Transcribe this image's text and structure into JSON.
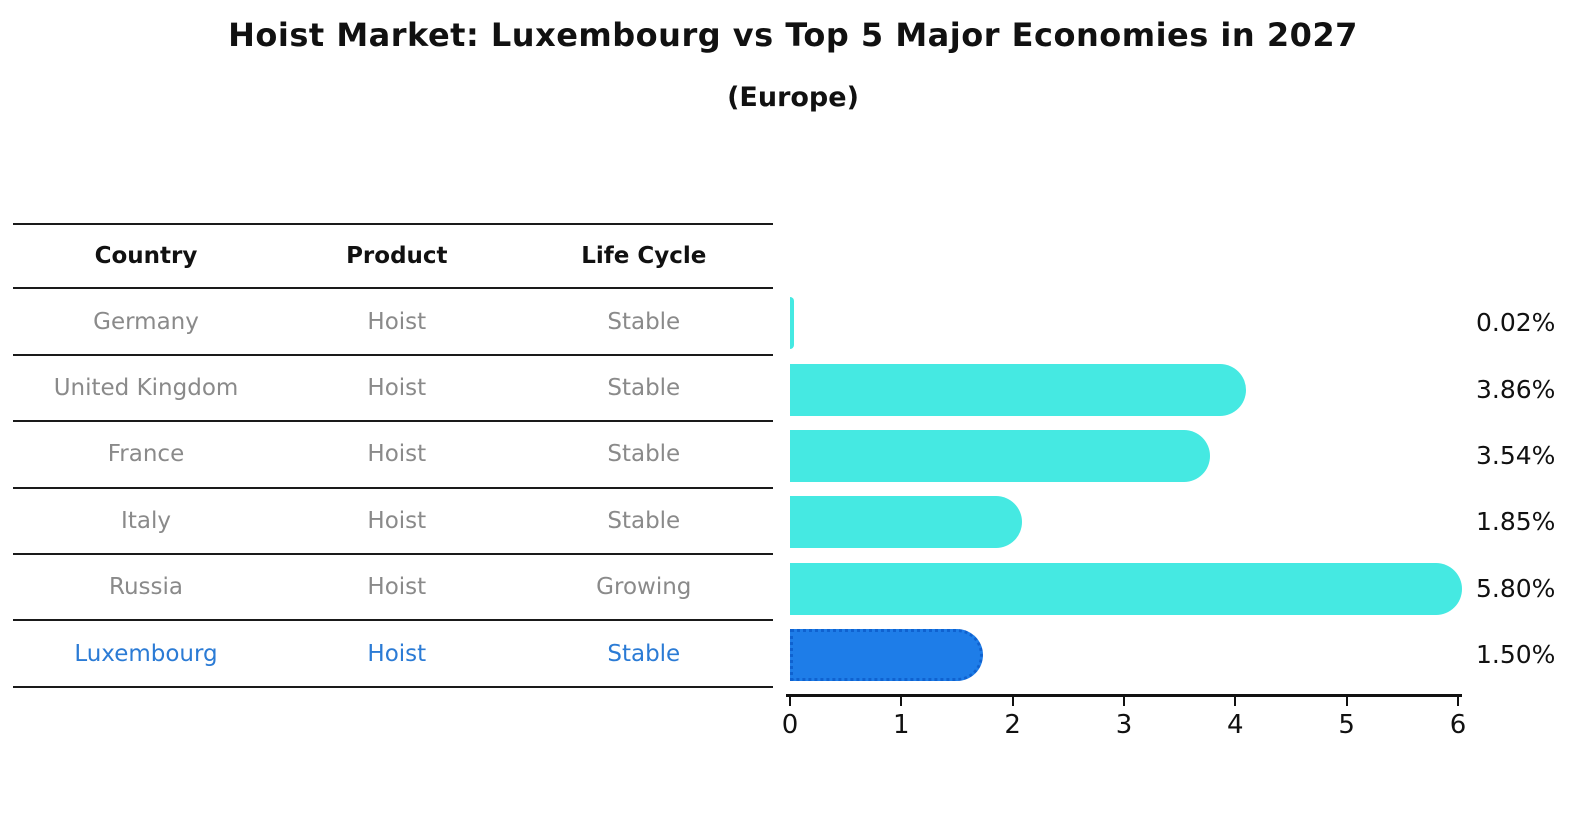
{
  "title": "Hoist Market: Luxembourg vs Top 5 Major Economies in 2027",
  "subtitle": "(Europe)",
  "table": {
    "headers": [
      "Country",
      "Product",
      "Life Cycle"
    ],
    "rows": [
      {
        "country": "Germany",
        "product": "Hoist",
        "life_cycle": "Stable",
        "highlight": false
      },
      {
        "country": "United Kingdom",
        "product": "Hoist",
        "life_cycle": "Stable",
        "highlight": false
      },
      {
        "country": "France",
        "product": "Hoist",
        "life_cycle": "Stable",
        "highlight": false
      },
      {
        "country": "Italy",
        "product": "Hoist",
        "life_cycle": "Stable",
        "highlight": false
      },
      {
        "country": "Russia",
        "product": "Hoist",
        "life_cycle": "Growing",
        "highlight": false
      },
      {
        "country": "Luxembourg",
        "product": "Hoist",
        "life_cycle": "Stable",
        "highlight": true
      }
    ]
  },
  "chart_data": {
    "type": "bar",
    "orientation": "horizontal",
    "title": "Hoist Market: Luxembourg vs Top 5 Major Economies in 2027",
    "subtitle": "(Europe)",
    "categories": [
      "Germany",
      "United Kingdom",
      "France",
      "Italy",
      "Russia",
      "Luxembourg"
    ],
    "values": [
      0.02,
      3.86,
      3.54,
      1.85,
      5.8,
      1.5
    ],
    "value_labels": [
      "0.02%",
      "3.86%",
      "3.54%",
      "1.85%",
      "5.80%",
      "1.50%"
    ],
    "xlabel": "",
    "ylabel": "",
    "xlim": [
      0,
      6
    ],
    "x_ticks": [
      "0",
      "1",
      "2",
      "3",
      "4",
      "5",
      "6"
    ],
    "grid": false,
    "legend": false,
    "highlight_index": 5,
    "bar_color": "#45e9e2",
    "highlight_bar_color": "#1e7de8",
    "highlight_text_color": "#2b7bd5"
  }
}
